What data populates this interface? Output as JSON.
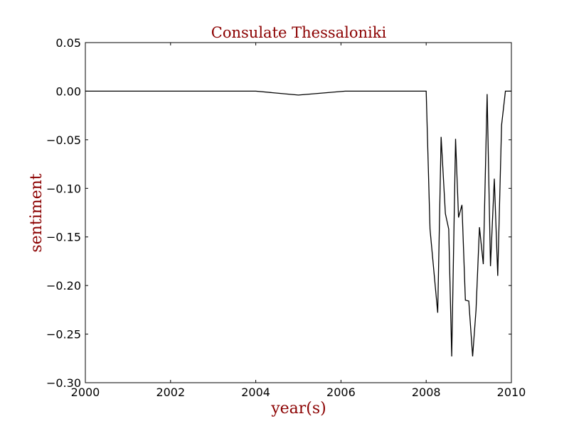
{
  "chart_data": {
    "type": "line",
    "title": "Consulate Thessaloniki",
    "xlabel": "year(s)",
    "ylabel": "sentiment",
    "xlim": [
      2000,
      2010
    ],
    "ylim": [
      -0.3,
      0.05
    ],
    "x_ticks": [
      2000,
      2002,
      2004,
      2006,
      2008,
      2010
    ],
    "x_tick_labels": [
      "2000",
      "2002",
      "2004",
      "2006",
      "2008",
      "2010"
    ],
    "y_ticks": [
      0.05,
      0.0,
      -0.05,
      -0.1,
      -0.15,
      -0.2,
      -0.25,
      -0.3
    ],
    "y_tick_labels": [
      "0.05",
      "0.00",
      "−0.05",
      "−0.10",
      "−0.15",
      "−0.20",
      "−0.25",
      "−0.30"
    ],
    "grid": false,
    "legend": "none",
    "label_color": "#8b0000",
    "line_color": "#000000",
    "series": [
      {
        "x": [
          2000.0,
          2004.0,
          2005.0,
          2006.1,
          2008.0,
          2008.09,
          2008.27,
          2008.35,
          2008.45,
          2008.53,
          2008.6,
          2008.69,
          2008.76,
          2008.84,
          2008.92,
          2009.0,
          2009.09,
          2009.17,
          2009.25,
          2009.34,
          2009.43,
          2009.51,
          2009.6,
          2009.68,
          2009.77,
          2009.86,
          2010.0
        ],
        "y": [
          0.0,
          0.0,
          -0.004,
          0.0,
          0.0,
          -0.142,
          -0.228,
          -0.047,
          -0.126,
          -0.142,
          -0.273,
          -0.049,
          -0.13,
          -0.117,
          -0.215,
          -0.216,
          -0.273,
          -0.225,
          -0.14,
          -0.178,
          -0.003,
          -0.18,
          -0.09,
          -0.19,
          -0.035,
          0.0,
          0.0
        ]
      }
    ]
  }
}
